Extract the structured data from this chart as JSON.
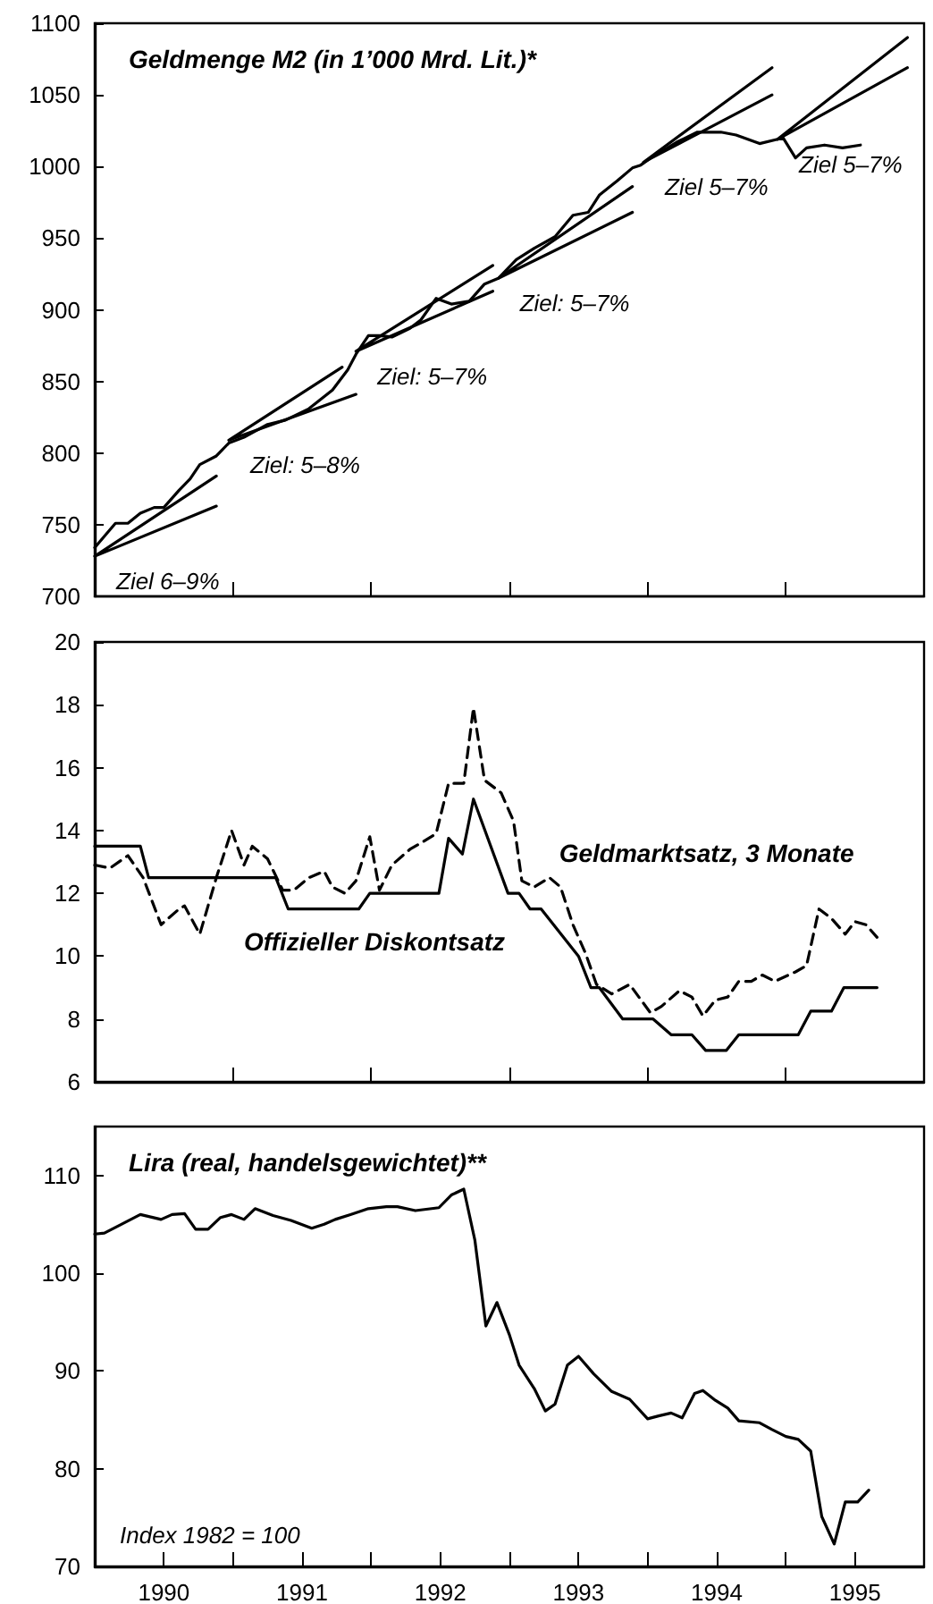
{
  "chart_data": [
    {
      "type": "line",
      "title": "Geldmenge M2 (in 1’000 Mrd. Lit.)*",
      "xlim": [
        1990,
        1996
      ],
      "ylim": [
        700,
        1100
      ],
      "xticks": [
        {
          "value": 1991,
          "label": null
        },
        {
          "value": 1992,
          "label": null
        },
        {
          "value": 1993,
          "label": null
        },
        {
          "value": 1994,
          "label": null
        },
        {
          "value": 1995,
          "label": null
        }
      ],
      "yticks": [
        700,
        750,
        800,
        850,
        900,
        950,
        1000,
        1050,
        1100
      ],
      "tick_labels": "y",
      "grid": false,
      "legend": false,
      "marker": "none",
      "line_style": "solid",
      "series": [
        {
          "color": "#000000",
          "x": [
            1990.0,
            1990.07,
            1990.15,
            1990.24,
            1990.33,
            1990.43,
            1990.5,
            1990.61,
            1990.69,
            1990.76,
            1990.88,
            1990.97,
            1991.08,
            1991.25,
            1991.38,
            1991.55,
            1991.72,
            1991.83,
            1991.89,
            1991.98,
            1992.06,
            1992.15,
            1992.28,
            1992.36,
            1992.47,
            1992.58,
            1992.71,
            1992.82,
            1992.92,
            1993.05,
            1993.18,
            1993.33,
            1993.46,
            1993.57,
            1993.65,
            1993.78,
            1993.89,
            1993.95,
            1994.04,
            1994.21,
            1994.36,
            1994.53,
            1994.64,
            1994.81,
            1994.94,
            1994.98,
            1995.07,
            1995.15,
            1995.28,
            1995.41,
            1995.54
          ],
          "values": [
            734,
            742,
            751,
            751,
            758,
            762,
            762,
            774,
            782,
            792,
            798,
            807,
            811,
            820,
            823,
            831,
            844,
            858,
            869,
            882,
            882,
            881,
            887,
            893,
            908,
            904,
            906,
            918,
            922,
            935,
            943,
            951,
            966,
            968,
            980,
            990,
            999,
            1001,
            1007,
            1017,
            1024,
            1024,
            1022,
            1016,
            1019,
            1020,
            1006,
            1013,
            1015,
            1013,
            1015
          ]
        },
        {
          "name": "Ziel 6–9%",
          "color": "#000000",
          "x": [
            1990.88,
            1990.0,
            1990.88
          ],
          "values": [
            784,
            728,
            763
          ]
        },
        {
          "name": "Ziel: 5–8%",
          "color": "#000000",
          "x": [
            1991.79,
            1990.97,
            1991.89
          ],
          "values": [
            860,
            809,
            841
          ]
        },
        {
          "name": "Ziel: 5–7%",
          "color": "#000000",
          "x": [
            1992.88,
            1991.89,
            1992.88
          ],
          "values": [
            931,
            871,
            913
          ]
        },
        {
          "name": "Ziel: 5–7%",
          "color": "#000000",
          "x": [
            1993.89,
            1992.92,
            1993.89
          ],
          "values": [
            986,
            922,
            968
          ]
        },
        {
          "name": "Ziel 5–7%",
          "color": "#000000",
          "x": [
            1994.9,
            1993.97,
            1994.9
          ],
          "values": [
            1069,
            1003,
            1050
          ]
        },
        {
          "name": "Ziel 5–7%",
          "color": "#000000",
          "x": [
            1995.88,
            1994.94,
            1995.88
          ],
          "values": [
            1090,
            1019,
            1069
          ]
        }
      ]
    },
    {
      "type": "line",
      "xlim": [
        1990,
        1996
      ],
      "ylim": [
        6,
        20
      ],
      "xticks": [
        {
          "value": 1991,
          "label": null
        },
        {
          "value": 1992,
          "label": null
        },
        {
          "value": 1993,
          "label": null
        },
        {
          "value": 1994,
          "label": null
        },
        {
          "value": 1995,
          "label": null
        }
      ],
      "yticks": [
        6,
        8,
        10,
        12,
        14,
        16,
        18,
        20
      ],
      "tick_labels": "y",
      "grid": false,
      "legend": false,
      "marker": "none",
      "series": [
        {
          "name": "Offizieller Diskontsatz",
          "color": "#000000",
          "line_style": "solid",
          "x": [
            1990.0,
            1990.33,
            1990.39,
            1991.31,
            1991.4,
            1991.91,
            1991.99,
            1992.49,
            1992.56,
            1992.66,
            1992.74,
            1992.99,
            1993.07,
            1993.15,
            1993.23,
            1993.5,
            1993.59,
            1993.65,
            1993.82,
            1994.04,
            1994.17,
            1994.32,
            1994.42,
            1994.57,
            1994.66,
            1995.09,
            1995.18,
            1995.33,
            1995.42,
            1995.66
          ],
          "values": [
            13.5,
            13.5,
            12.5,
            12.5,
            11.5,
            11.5,
            12,
            12,
            13.75,
            13.25,
            15,
            12,
            12,
            11.5,
            11.5,
            10,
            9,
            9,
            8,
            8,
            7.5,
            7.5,
            7,
            7,
            7.5,
            7.5,
            8.25,
            8.25,
            9,
            9
          ]
        },
        {
          "name": "Geldmarktsatz, 3 Monate",
          "color": "#000000",
          "line_style": "dashed",
          "x": [
            1990.0,
            1990.11,
            1990.24,
            1990.35,
            1990.48,
            1990.61,
            1990.65,
            1990.76,
            1990.88,
            1990.99,
            1991.08,
            1991.14,
            1991.25,
            1991.36,
            1991.44,
            1991.55,
            1991.66,
            1991.72,
            1991.81,
            1991.89,
            1991.99,
            1992.06,
            1992.15,
            1992.28,
            1992.36,
            1992.47,
            1992.56,
            1992.67,
            1992.74,
            1992.82,
            1992.94,
            1993.03,
            1993.09,
            1993.18,
            1993.29,
            1993.37,
            1993.46,
            1993.55,
            1993.63,
            1993.74,
            1993.87,
            1994.02,
            1994.1,
            1994.23,
            1994.32,
            1994.4,
            1994.49,
            1994.58,
            1994.66,
            1994.75,
            1994.83,
            1994.92,
            1995.07,
            1995.15,
            1995.24,
            1995.33,
            1995.43,
            1995.5,
            1995.58,
            1995.66
          ],
          "values": [
            12.9,
            12.8,
            13.2,
            12.5,
            11.0,
            11.5,
            11.6,
            10.7,
            12.5,
            14.0,
            12.9,
            13.5,
            13.1,
            12.1,
            12.1,
            12.5,
            12.7,
            12.2,
            12.0,
            12.4,
            13.8,
            12.1,
            12.9,
            13.4,
            13.6,
            13.9,
            15.5,
            15.5,
            17.9,
            15.6,
            15.2,
            14.3,
            12.4,
            12.2,
            12.5,
            12.2,
            11.0,
            10.1,
            9.1,
            8.8,
            9.1,
            8.2,
            8.4,
            8.9,
            8.7,
            8.1,
            8.6,
            8.7,
            9.2,
            9.2,
            9.4,
            9.2,
            9.5,
            9.7,
            11.5,
            11.2,
            10.7,
            11.1,
            11.0,
            10.6
          ]
        }
      ]
    },
    {
      "type": "line",
      "title": "Lira (real, handelsgewichtet)**",
      "xlim": [
        1990,
        1996
      ],
      "ylim": [
        70,
        115
      ],
      "xticks": [
        {
          "value": 1990.5,
          "label": "1990"
        },
        {
          "value": 1991,
          "label": null
        },
        {
          "value": 1991.5,
          "label": "1991"
        },
        {
          "value": 1992,
          "label": null
        },
        {
          "value": 1992.5,
          "label": "1992"
        },
        {
          "value": 1993,
          "label": null
        },
        {
          "value": 1993.5,
          "label": "1993"
        },
        {
          "value": 1994,
          "label": null
        },
        {
          "value": 1994.5,
          "label": "1994"
        },
        {
          "value": 1995,
          "label": null
        },
        {
          "value": 1995.5,
          "label": "1995"
        }
      ],
      "yticks": [
        70,
        80,
        90,
        100,
        110
      ],
      "grid": false,
      "legend": false,
      "marker": "none",
      "line_style": "solid",
      "series": [
        {
          "color": "#000000",
          "x": [
            1990.0,
            1990.07,
            1990.18,
            1990.33,
            1990.48,
            1990.56,
            1990.65,
            1990.73,
            1990.82,
            1990.91,
            1990.99,
            1991.08,
            1991.16,
            1991.29,
            1991.42,
            1991.57,
            1991.66,
            1991.74,
            1991.85,
            1991.98,
            1992.11,
            1992.19,
            1992.32,
            1992.49,
            1992.58,
            1992.67,
            1992.75,
            1992.83,
            1992.91,
            1993.0,
            1993.07,
            1993.18,
            1993.26,
            1993.33,
            1993.42,
            1993.5,
            1993.61,
            1993.74,
            1993.87,
            1994.0,
            1994.08,
            1994.17,
            1994.25,
            1994.34,
            1994.4,
            1994.49,
            1994.58,
            1994.66,
            1994.81,
            1994.9,
            1995.0,
            1995.09,
            1995.18,
            1995.26,
            1995.35,
            1995.43,
            1995.52,
            1995.6
          ],
          "values": [
            104.0,
            104.1,
            104.9,
            106.0,
            105.5,
            106.0,
            106.1,
            104.5,
            104.5,
            105.7,
            106.0,
            105.5,
            106.6,
            105.9,
            105.4,
            104.6,
            105.0,
            105.5,
            106.0,
            106.6,
            106.8,
            106.8,
            106.4,
            106.7,
            108.0,
            108.6,
            103.4,
            94.6,
            97.0,
            93.7,
            90.6,
            88.2,
            85.9,
            86.6,
            90.6,
            91.5,
            89.7,
            87.9,
            87.1,
            85.1,
            85.4,
            85.7,
            85.2,
            87.7,
            88.0,
            87.0,
            86.2,
            84.9,
            84.7,
            84.0,
            83.3,
            83.0,
            81.8,
            75.1,
            72.3,
            76.6,
            76.6,
            77.8
          ]
        }
      ],
      "annotations": [
        "Index 1982 = 100"
      ]
    }
  ]
}
